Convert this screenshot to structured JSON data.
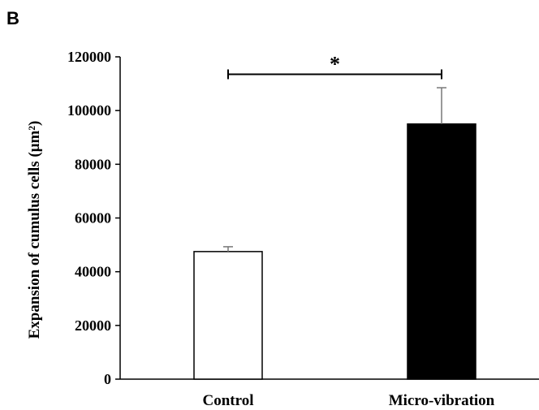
{
  "panel_label": "B",
  "chart_data": {
    "type": "bar",
    "categories": [
      "Control",
      "Micro-vibration"
    ],
    "values": [
      47500,
      95000
    ],
    "errors": [
      1800,
      13500
    ],
    "bar_colors": [
      "#ffffff",
      "#000000"
    ],
    "ylabel": "Expansion of cumulus cells (μm²)",
    "xlabel": "",
    "ylim": [
      0,
      120000
    ],
    "yticks": [
      0,
      20000,
      40000,
      60000,
      80000,
      100000,
      120000
    ],
    "ytick_labels": [
      "0",
      "20000",
      "40000",
      "60000",
      "80000",
      "100000",
      "120000"
    ],
    "grid": false,
    "significance": {
      "between": [
        0,
        1
      ],
      "label": "*",
      "y": 113500
    }
  }
}
